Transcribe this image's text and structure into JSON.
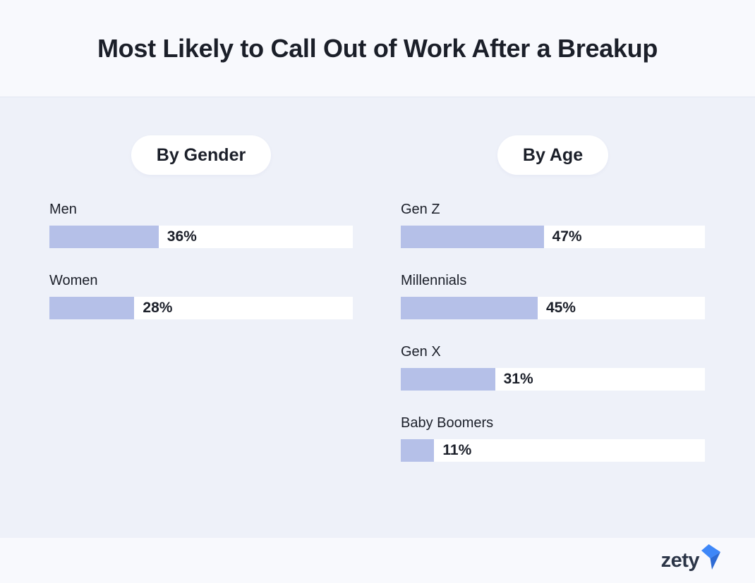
{
  "title": "Most Likely to Call Out of Work After a Breakup",
  "chart_data": [
    {
      "type": "bar",
      "orientation": "horizontal",
      "title": "By Gender",
      "categories": [
        "Men",
        "Women"
      ],
      "values": [
        36,
        28
      ],
      "value_labels": [
        "36%",
        "28%"
      ],
      "unit": "%",
      "xlim": [
        0,
        100
      ],
      "grid": false,
      "legend": false
    },
    {
      "type": "bar",
      "orientation": "horizontal",
      "title": "By Age",
      "categories": [
        "Gen Z",
        "Millennials",
        "Gen X",
        "Baby Boomers"
      ],
      "values": [
        47,
        45,
        31,
        11
      ],
      "value_labels": [
        "47%",
        "45%",
        "31%",
        "11%"
      ],
      "unit": "%",
      "xlim": [
        0,
        100
      ],
      "grid": false,
      "legend": false
    }
  ],
  "colors": {
    "bar_fill": "#b5c0e8",
    "bar_track": "#ffffff",
    "header_bg": "#f8f9fd",
    "body_bg": "#eef1f9",
    "title_text": "#1b1f29",
    "logo_navy": "#2b3547",
    "logo_blue": "#3e87f8",
    "logo_blue_dark": "#2e6bd4"
  },
  "footer": {
    "logo_text": "zety"
  }
}
